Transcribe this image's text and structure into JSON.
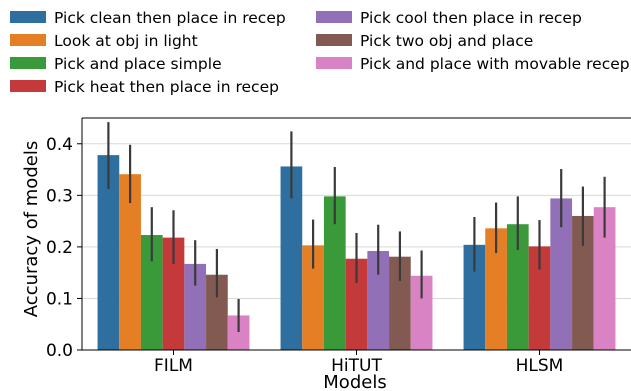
{
  "chart_data": {
    "type": "bar",
    "categories": [
      "FILM",
      "HiTUT",
      "HLSM"
    ],
    "xlabel": "Models",
    "ylabel": "Accuracy of models",
    "ylim": [
      0,
      0.45
    ],
    "yticks": [
      0.0,
      0.1,
      0.2,
      0.3,
      0.4
    ],
    "ytick_labels": [
      "0.0",
      "0.1",
      "0.2",
      "0.3",
      "0.4"
    ],
    "grid": true,
    "legend_position": "top",
    "series": [
      {
        "name": "Pick clean then place in recep",
        "color": "#2f6f9f",
        "values": [
          0.378,
          0.356,
          0.204
        ],
        "err_low": [
          0.312,
          0.294,
          0.152
        ],
        "err_high": [
          0.442,
          0.424,
          0.258
        ]
      },
      {
        "name": "Look at obj in light",
        "color": "#e47f26",
        "values": [
          0.341,
          0.203,
          0.236
        ],
        "err_low": [
          0.285,
          0.158,
          0.188
        ],
        "err_high": [
          0.398,
          0.253,
          0.286
        ]
      },
      {
        "name": "Pick and place simple",
        "color": "#3a9a3a",
        "values": [
          0.223,
          0.298,
          0.244
        ],
        "err_low": [
          0.172,
          0.244,
          0.194
        ],
        "err_high": [
          0.277,
          0.355,
          0.298
        ]
      },
      {
        "name": "Pick heat then place in recep",
        "color": "#c43a3b",
        "values": [
          0.218,
          0.177,
          0.201
        ],
        "err_low": [
          0.167,
          0.13,
          0.156
        ],
        "err_high": [
          0.271,
          0.227,
          0.252
        ]
      },
      {
        "name": "Pick cool then place in recep",
        "color": "#9170b8",
        "values": [
          0.167,
          0.192,
          0.294
        ],
        "err_low": [
          0.125,
          0.146,
          0.238
        ],
        "err_high": [
          0.213,
          0.243,
          0.351
        ]
      },
      {
        "name": "Pick two obj and place",
        "color": "#825a52",
        "values": [
          0.146,
          0.181,
          0.26
        ],
        "err_low": [
          0.102,
          0.134,
          0.202
        ],
        "err_high": [
          0.196,
          0.23,
          0.317
        ]
      },
      {
        "name": "Pick and place with movable recep",
        "color": "#d982c4",
        "values": [
          0.067,
          0.144,
          0.277
        ],
        "err_low": [
          0.035,
          0.1,
          0.218
        ],
        "err_high": [
          0.099,
          0.193,
          0.336
        ]
      }
    ]
  }
}
